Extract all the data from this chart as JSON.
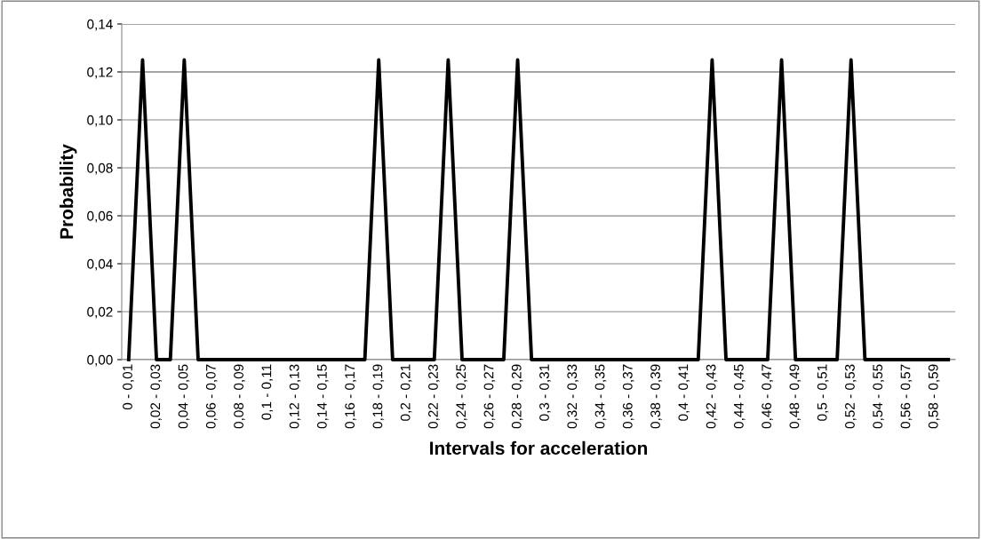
{
  "chart_data": {
    "type": "line",
    "xlabel": "Intervals for acceleration",
    "ylabel": "Probability",
    "categories": [
      "0 - 0,01",
      null,
      "0,02 - 0,03",
      null,
      "0,04 - 0,05",
      null,
      "0,06 - 0,07",
      null,
      "0,08 - 0,09",
      null,
      "0,1 - 0,11",
      null,
      "0,12 - 0,13",
      null,
      "0,14 - 0,15",
      null,
      "0,16 - 0,17",
      null,
      "0,18 - 0,19",
      null,
      "0,2 - 0,21",
      null,
      "0,22 - 0,23",
      null,
      "0,24 - 0,25",
      null,
      "0,26 - 0,27",
      null,
      "0,28 - 0,29",
      null,
      "0,3 - 0,31",
      null,
      "0,32 - 0,33",
      null,
      "0,34 - 0,35",
      null,
      "0,36 - 0,37",
      null,
      "0,38 - 0,39",
      null,
      "0,4 - 0,41",
      null,
      "0,42 - 0,43",
      null,
      "0,44 - 0,45",
      null,
      "0,46 - 0,47",
      null,
      "0,48 - 0,49",
      null,
      "0,5 - 0,51",
      null,
      "0,52 - 0,53",
      null,
      "0,54 - 0,55",
      null,
      "0,56 - 0,57",
      null,
      "0,58 - 0,59",
      null
    ],
    "series": [
      {
        "color": "#000000",
        "values": [
          0,
          0.125,
          0,
          0,
          0.125,
          0,
          0,
          0,
          0,
          0,
          0,
          0,
          0,
          0,
          0,
          0,
          0,
          0,
          0.125,
          0,
          0,
          0,
          0,
          0.125,
          0,
          0,
          0,
          0,
          0.125,
          0,
          0,
          0,
          0,
          0,
          0,
          0,
          0,
          0,
          0,
          0,
          0,
          0,
          0.125,
          0,
          0,
          0,
          0,
          0.125,
          0,
          0,
          0,
          0,
          0.125,
          0,
          0,
          0,
          0,
          0,
          0,
          0
        ]
      }
    ],
    "ylim": [
      0,
      0.14
    ],
    "yticks": [
      {
        "value": 0,
        "label": "0,00"
      },
      {
        "value": 0.02,
        "label": "0,02"
      },
      {
        "value": 0.04,
        "label": "0,04"
      },
      {
        "value": 0.06,
        "label": "0,06"
      },
      {
        "value": 0.08,
        "label": "0,08"
      },
      {
        "value": 0.1,
        "label": "0,10"
      },
      {
        "value": 0.12,
        "label": "0,12"
      },
      {
        "value": 0.14,
        "label": "0,14"
      }
    ],
    "grid": "y",
    "marker": "none",
    "line_style": "solid"
  }
}
